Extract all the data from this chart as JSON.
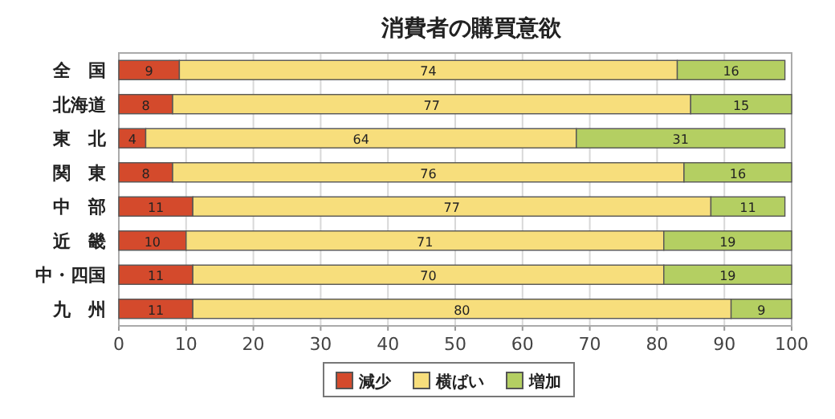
{
  "chart_data": {
    "type": "bar",
    "orientation": "horizontal",
    "stacked": true,
    "title": "消費者の購買意欲",
    "categories": [
      "全　国",
      "北海道",
      "東　北",
      "関　東",
      "中　部",
      "近　畿",
      "中・四国",
      "九　州"
    ],
    "series": [
      {
        "name": "減少",
        "color": "#d44a2c",
        "values": [
          9,
          8,
          4,
          8,
          11,
          10,
          11,
          11
        ]
      },
      {
        "name": "横ばい",
        "color": "#f7de7c",
        "values": [
          74,
          77,
          64,
          76,
          77,
          71,
          70,
          80
        ]
      },
      {
        "name": "増加",
        "color": "#b4cf62",
        "values": [
          16,
          15,
          31,
          16,
          11,
          19,
          19,
          9
        ]
      }
    ],
    "xlim": [
      0,
      100
    ],
    "xticks": [
      0,
      10,
      20,
      30,
      40,
      50,
      60,
      70,
      80,
      90,
      100
    ],
    "grid": "x",
    "data_labels": true,
    "legend": "bottom"
  }
}
